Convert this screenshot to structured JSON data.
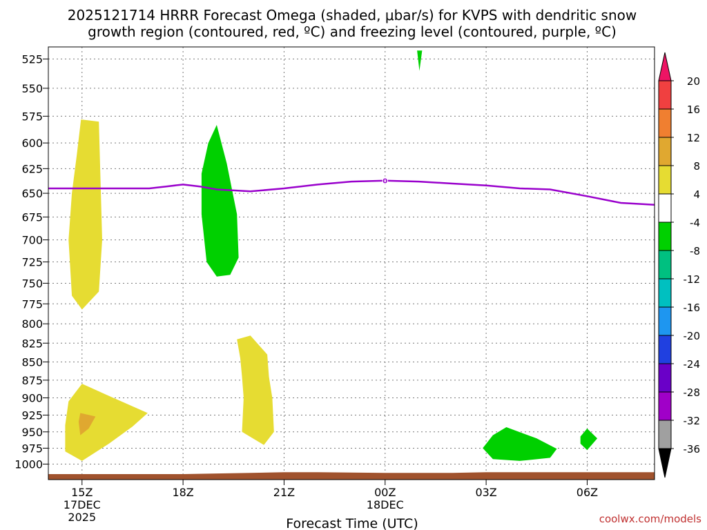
{
  "chart_data": {
    "type": "heatmap",
    "title_line1": "2025121714 HRRR Forecast Omega (shaded, μbar/s) for KVPS with dendritic snow",
    "title_line2": "growth region (contoured, red, ºC) and freezing level (contoured, purple, ºC)",
    "xlabel": "Forecast Time (UTC)",
    "credit": "coolwx.com/models",
    "x_unit": "hours since 2025-12-17 14Z",
    "x_range": [
      14,
      32
    ],
    "x_ticks": [
      {
        "x": 15,
        "label": "15Z",
        "sub1": "17DEC",
        "sub2": "2025"
      },
      {
        "x": 18,
        "label": "18Z",
        "sub1": "",
        "sub2": ""
      },
      {
        "x": 21,
        "label": "21Z",
        "sub1": "",
        "sub2": ""
      },
      {
        "x": 24,
        "label": "00Z",
        "sub1": "18DEC",
        "sub2": ""
      },
      {
        "x": 27,
        "label": "03Z",
        "sub1": "",
        "sub2": ""
      },
      {
        "x": 30,
        "label": "06Z",
        "sub1": "",
        "sub2": ""
      }
    ],
    "y_unit": "hPa",
    "y_range": [
      1025,
      515
    ],
    "y_ticks": [
      525,
      550,
      575,
      600,
      625,
      650,
      675,
      700,
      725,
      750,
      775,
      800,
      825,
      850,
      875,
      900,
      925,
      950,
      975,
      1000
    ],
    "grid": true,
    "colorbar": {
      "labels": [
        "20",
        "16",
        "12",
        "8",
        "4",
        "-4",
        "-8",
        "-12",
        "-16",
        "-20",
        "-24",
        "-28",
        "-32",
        "-36"
      ],
      "colors": [
        "#ed1464",
        "#f04040",
        "#f07f30",
        "#e0a830",
        "#e6dc32",
        "#ffffff",
        "#00d000",
        "#00c080",
        "#00c0c0",
        "#1e96f0",
        "#2040e0",
        "#6a00c8",
        "#a000c8",
        "#a0a0a0",
        "#000000"
      ]
    },
    "omega_regions": [
      {
        "level": "4 to 8",
        "color": "#e6dc32",
        "points": [
          [
            14.97,
            578
          ],
          [
            15.5,
            580
          ],
          [
            15.6,
            700
          ],
          [
            15.5,
            760
          ],
          [
            15.0,
            782
          ],
          [
            14.7,
            765
          ],
          [
            14.6,
            700
          ],
          [
            14.7,
            650
          ],
          [
            14.85,
            610
          ]
        ]
      },
      {
        "level": "4 to 8",
        "color": "#e6dc32",
        "points": [
          [
            15.0,
            880
          ],
          [
            15.7,
            895
          ],
          [
            16.4,
            910
          ],
          [
            16.95,
            922
          ],
          [
            16.5,
            942
          ],
          [
            15.8,
            968
          ],
          [
            15.0,
            995
          ],
          [
            14.5,
            980
          ],
          [
            14.5,
            940
          ],
          [
            14.6,
            905
          ]
        ]
      },
      {
        "level": "8 to 12",
        "color": "#e0a830",
        "points": [
          [
            14.95,
            922
          ],
          [
            15.4,
            927
          ],
          [
            15.2,
            945
          ],
          [
            14.95,
            955
          ],
          [
            14.9,
            935
          ]
        ]
      },
      {
        "level": "4 to 8",
        "color": "#e6dc32",
        "points": [
          [
            20.0,
            815
          ],
          [
            20.5,
            840
          ],
          [
            20.55,
            870
          ],
          [
            20.65,
            900
          ],
          [
            20.7,
            950
          ],
          [
            20.4,
            970
          ],
          [
            19.75,
            950
          ],
          [
            19.8,
            900
          ],
          [
            19.75,
            870
          ],
          [
            19.7,
            845
          ],
          [
            19.6,
            820
          ]
        ]
      },
      {
        "level": "-4 to -8",
        "color": "#00d000",
        "points": [
          [
            19.0,
            583
          ],
          [
            19.3,
            620
          ],
          [
            19.6,
            672
          ],
          [
            19.65,
            720
          ],
          [
            19.4,
            740
          ],
          [
            19.0,
            742
          ],
          [
            18.7,
            725
          ],
          [
            18.55,
            672
          ],
          [
            18.55,
            630
          ],
          [
            18.75,
            600
          ]
        ]
      },
      {
        "level": "-4 to -8",
        "color": "#00d000",
        "points": [
          [
            27.6,
            943
          ],
          [
            28.5,
            960
          ],
          [
            29.1,
            976
          ],
          [
            28.9,
            990
          ],
          [
            28.0,
            995
          ],
          [
            27.2,
            992
          ],
          [
            26.9,
            975
          ],
          [
            27.2,
            955
          ]
        ]
      },
      {
        "level": "-4 to -8",
        "color": "#00d000",
        "points": [
          [
            30.0,
            945
          ],
          [
            30.3,
            960
          ],
          [
            30.0,
            978
          ],
          [
            29.8,
            968
          ],
          [
            29.8,
            957
          ]
        ]
      },
      {
        "level": "-4 to -8",
        "color": "#00d000",
        "points": [
          [
            24.95,
            518
          ],
          [
            25.1,
            518
          ],
          [
            25.02,
            535
          ]
        ]
      }
    ],
    "freezing_level": {
      "color": "#9900cc",
      "label": "0",
      "label_x": 24,
      "x": [
        14,
        15,
        16,
        17,
        17.5,
        18,
        18.5,
        19,
        19.5,
        20,
        21,
        22,
        23,
        24,
        25,
        26,
        27,
        28,
        28.9,
        30,
        31,
        32
      ],
      "y": [
        645,
        645,
        645,
        645,
        643,
        641,
        643,
        646,
        647,
        648,
        645,
        641,
        638,
        637,
        638,
        640,
        642,
        645,
        646,
        653,
        660,
        662
      ]
    },
    "terrain": {
      "color": "#a0522d",
      "x": [
        14,
        15,
        18,
        19,
        20,
        21,
        22,
        24,
        26,
        27,
        28,
        30,
        32
      ],
      "y": [
        1016,
        1016,
        1016,
        1015,
        1014,
        1013,
        1013,
        1014,
        1014,
        1013,
        1013,
        1013,
        1013
      ]
    }
  }
}
